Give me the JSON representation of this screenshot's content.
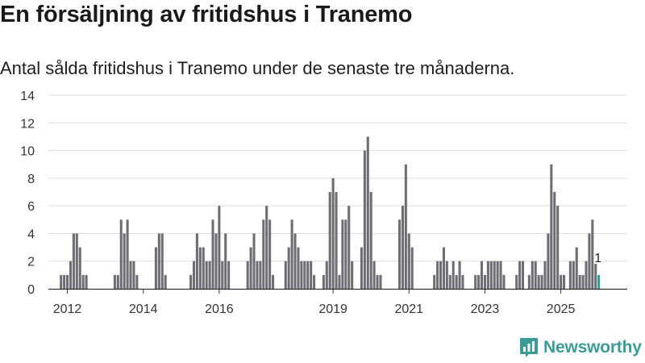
{
  "title": "En försäljning av fritidshus i Tranemo",
  "subtitle": "Antal sålda fritidshus i Tranemo under de senaste tre månaderna.",
  "brand": {
    "name": "Newsworthy",
    "icon": "newsworthy-logo-icon",
    "color": "#3a9c95"
  },
  "colors": {
    "bar": "#6e6d73",
    "highlight": "#2a9d96",
    "grid": "#dcdcdc",
    "axis": "#333333"
  },
  "chart_data": {
    "type": "bar",
    "ylim": [
      0,
      14
    ],
    "yticks": [
      0,
      2,
      4,
      6,
      8,
      10,
      12,
      14
    ],
    "xlim": [
      2011.5,
      2026.75
    ],
    "xticks": [
      {
        "value": 2012,
        "label": "2012"
      },
      {
        "value": 2014,
        "label": "2014"
      },
      {
        "value": 2016,
        "label": "2016"
      },
      {
        "value": 2019,
        "label": "2019"
      },
      {
        "value": 2021,
        "label": "2021"
      },
      {
        "value": 2023,
        "label": "2023"
      },
      {
        "value": 2025,
        "label": "2025"
      }
    ],
    "grid": true,
    "bar_spacing_months": 1,
    "series_start": "2011-10",
    "values": [
      0,
      1,
      1,
      1,
      2,
      4,
      4,
      3,
      1,
      1,
      0,
      0,
      0,
      0,
      0,
      0,
      0,
      0,
      1,
      1,
      5,
      4,
      5,
      2,
      2,
      1,
      0,
      0,
      0,
      0,
      0,
      3,
      4,
      4,
      1,
      0,
      0,
      0,
      0,
      0,
      0,
      0,
      1,
      2,
      4,
      3,
      3,
      2,
      2,
      5,
      4,
      6,
      2,
      4,
      2,
      0,
      0,
      0,
      0,
      0,
      2,
      3,
      4,
      2,
      2,
      5,
      6,
      5,
      1,
      0,
      0,
      0,
      2,
      3,
      5,
      4,
      3,
      2,
      2,
      2,
      2,
      1,
      0,
      0,
      1,
      2,
      7,
      8,
      7,
      1,
      5,
      5,
      6,
      2,
      0,
      0,
      3,
      10,
      11,
      7,
      2,
      1,
      1,
      0,
      0,
      0,
      0,
      0,
      5,
      6,
      9,
      4,
      3,
      0,
      0,
      0,
      0,
      0,
      0,
      1,
      2,
      2,
      3,
      2,
      1,
      2,
      1,
      2,
      1,
      0,
      0,
      0,
      1,
      1,
      2,
      1,
      2,
      2,
      2,
      2,
      2,
      1,
      0,
      0,
      0,
      1,
      2,
      2,
      0,
      1,
      2,
      2,
      1,
      1,
      2,
      4,
      9,
      7,
      6,
      1,
      1,
      0,
      2,
      2,
      3,
      1,
      1,
      2,
      4,
      5,
      2,
      1
    ],
    "highlight_last": true,
    "last_label": "1"
  }
}
